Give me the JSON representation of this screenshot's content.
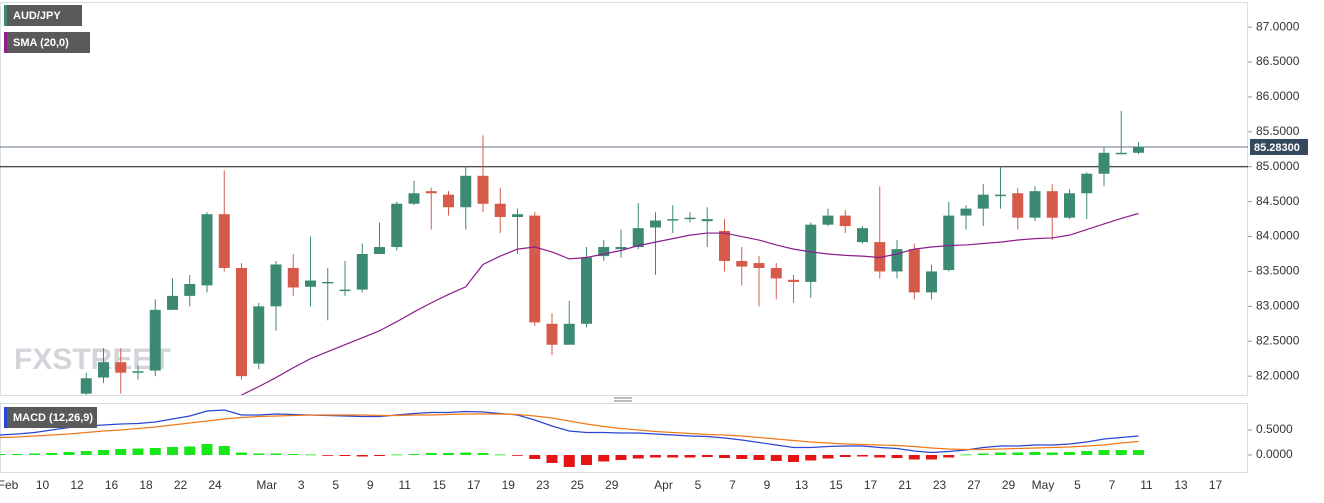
{
  "chart_data": [
    {
      "type": "candlestick",
      "title": "AUD/JPY",
      "watermark": "FXSTREET",
      "categories": [
        "Feb",
        null,
        "10",
        null,
        "12",
        null,
        "16",
        null,
        "18",
        null,
        "22",
        null,
        "24",
        null,
        null,
        "Mar",
        null,
        "3",
        null,
        "5",
        null,
        "9",
        null,
        "11",
        null,
        "15",
        null,
        "17",
        null,
        "19",
        null,
        "23",
        null,
        "25",
        null,
        "29",
        null,
        null,
        "Apr",
        null,
        "5",
        null,
        "7",
        null,
        "9",
        null,
        "13",
        null,
        "15",
        null,
        "17",
        null,
        "21",
        null,
        "23",
        null,
        "27",
        null,
        "29",
        null,
        "May",
        null,
        "5",
        null,
        "7",
        null,
        "11",
        null,
        "13",
        null,
        "17"
      ],
      "open": [
        null,
        null,
        null,
        null,
        null,
        81.75,
        81.98,
        82.2,
        82.05,
        82.08,
        82.95,
        83.15,
        83.3,
        84.32,
        83.55,
        82.18,
        83.0,
        83.55,
        83.28,
        83.35,
        83.22,
        83.24,
        83.75,
        83.85,
        84.47,
        84.65,
        84.6,
        84.42,
        84.87,
        84.47,
        84.28,
        84.3,
        82.75,
        82.45,
        82.75,
        83.72,
        83.82,
        83.85,
        84.13,
        84.24,
        84.25,
        84.22,
        84.08,
        83.65,
        83.62,
        83.55,
        83.38,
        83.35,
        84.17,
        84.3,
        83.92,
        83.92,
        83.5,
        83.82,
        83.2,
        83.52,
        84.3,
        84.4,
        84.6,
        84.62,
        84.27,
        84.65,
        84.27,
        84.62,
        84.9,
        85.2,
        85.2,
        null,
        null,
        null,
        null
      ],
      "high": [
        null,
        null,
        null,
        null,
        null,
        82.05,
        82.4,
        82.4,
        82.15,
        83.1,
        83.4,
        83.45,
        84.35,
        84.95,
        83.62,
        83.05,
        83.65,
        83.75,
        84.0,
        83.55,
        83.65,
        83.9,
        84.2,
        84.5,
        84.8,
        84.7,
        84.65,
        85.0,
        85.45,
        84.7,
        84.4,
        84.35,
        82.9,
        83.08,
        83.85,
        83.95,
        84.1,
        84.48,
        84.35,
        84.45,
        84.35,
        84.42,
        84.25,
        83.85,
        83.72,
        83.62,
        83.45,
        84.2,
        84.4,
        84.38,
        84.15,
        84.72,
        83.95,
        83.9,
        83.6,
        84.5,
        84.45,
        84.75,
        85.0,
        84.7,
        84.72,
        84.75,
        84.68,
        84.92,
        85.28,
        85.8,
        85.35,
        null,
        null,
        null,
        null
      ],
      "low": [
        null,
        null,
        null,
        null,
        null,
        81.7,
        81.9,
        81.75,
        81.95,
        82.0,
        82.95,
        83.0,
        83.2,
        83.5,
        81.95,
        82.1,
        82.65,
        83.15,
        83.0,
        82.8,
        83.15,
        83.2,
        83.75,
        83.8,
        84.45,
        84.1,
        84.3,
        84.1,
        84.35,
        84.05,
        83.75,
        82.72,
        82.3,
        82.45,
        82.7,
        83.65,
        83.7,
        83.82,
        83.45,
        84.05,
        84.2,
        83.85,
        83.5,
        83.3,
        83.0,
        83.1,
        83.05,
        83.12,
        84.15,
        84.05,
        83.9,
        83.4,
        83.4,
        83.1,
        83.1,
        83.5,
        84.1,
        84.15,
        84.4,
        84.1,
        84.22,
        83.95,
        84.25,
        84.25,
        84.72,
        85.18,
        85.18,
        null,
        null,
        null,
        null
      ],
      "close": [
        null,
        null,
        null,
        null,
        null,
        81.97,
        82.2,
        82.05,
        82.07,
        82.95,
        83.15,
        83.32,
        84.32,
        83.55,
        82.0,
        83.0,
        83.6,
        83.27,
        83.37,
        83.35,
        83.24,
        83.75,
        83.85,
        84.47,
        84.62,
        84.62,
        84.42,
        84.87,
        84.47,
        84.28,
        84.32,
        82.77,
        82.45,
        82.75,
        83.7,
        83.85,
        83.85,
        84.12,
        84.23,
        84.25,
        84.27,
        84.25,
        83.65,
        83.57,
        83.55,
        83.4,
        83.35,
        84.17,
        84.3,
        84.15,
        84.12,
        83.5,
        83.82,
        83.2,
        83.5,
        84.3,
        84.4,
        84.6,
        84.6,
        84.27,
        84.65,
        84.27,
        84.62,
        84.9,
        85.2,
        85.2,
        85.28,
        null,
        null,
        null,
        null
      ],
      "up_color": "#3d8a74",
      "down_color": "#d55a4a",
      "series": [
        {
          "name": "SMA (20,0)",
          "color": "#8e1d8e",
          "values": [
            null,
            null,
            null,
            null,
            null,
            null,
            null,
            null,
            null,
            null,
            null,
            null,
            null,
            null,
            81.73,
            81.85,
            81.98,
            82.12,
            82.25,
            82.35,
            82.45,
            82.55,
            82.65,
            82.78,
            82.92,
            83.05,
            83.17,
            83.28,
            83.6,
            83.72,
            83.82,
            83.85,
            83.78,
            83.68,
            83.7,
            83.75,
            83.8,
            83.87,
            83.92,
            83.97,
            84.02,
            84.05,
            84.05,
            84.0,
            83.95,
            83.88,
            83.82,
            83.78,
            83.75,
            83.73,
            83.72,
            83.7,
            83.75,
            83.82,
            83.85,
            83.87,
            83.88,
            83.9,
            83.92,
            83.95,
            83.97,
            83.98,
            84.02,
            84.1,
            84.18,
            84.26,
            84.33,
            null,
            null,
            null,
            null
          ]
        }
      ],
      "hline": 85,
      "last_price": {
        "value": 85.283,
        "label": "85.28300"
      },
      "ylim": [
        81.73,
        87.36
      ],
      "yticks": [
        {
          "value": 82,
          "label": "82.0000"
        },
        {
          "value": 82.5,
          "label": "82.5000"
        },
        {
          "value": 83,
          "label": "83.0000"
        },
        {
          "value": 83.5,
          "label": "83.5000"
        },
        {
          "value": 84,
          "label": "84.0000"
        },
        {
          "value": 84.5,
          "label": "84.5000"
        },
        {
          "value": 85,
          "label": "85.0000"
        },
        {
          "value": 85.5,
          "label": "85.5000"
        },
        {
          "value": 86,
          "label": "86.0000"
        },
        {
          "value": 86.5,
          "label": "86.5000"
        },
        {
          "value": 87,
          "label": "87.0000"
        }
      ]
    },
    {
      "type": "macd",
      "title": "MACD (12,26,9)",
      "series": [
        {
          "color": "#2a46d0",
          "values": [
            0.4,
            0.42,
            0.45,
            0.5,
            0.55,
            0.58,
            0.6,
            0.62,
            0.63,
            0.66,
            0.72,
            0.78,
            0.88,
            0.9,
            0.8,
            0.8,
            0.82,
            0.81,
            0.8,
            0.79,
            0.78,
            0.77,
            0.77,
            0.8,
            0.83,
            0.85,
            0.85,
            0.87,
            0.86,
            0.83,
            0.8,
            0.7,
            0.58,
            0.48,
            0.45,
            0.45,
            0.44,
            0.44,
            0.42,
            0.4,
            0.38,
            0.37,
            0.34,
            0.3,
            0.25,
            0.2,
            0.15,
            0.15,
            0.17,
            0.18,
            0.18,
            0.15,
            0.13,
            0.08,
            0.05,
            0.07,
            0.1,
            0.15,
            0.18,
            0.18,
            0.2,
            0.2,
            0.22,
            0.26,
            0.32,
            0.35,
            0.38,
            null,
            null,
            null,
            null
          ]
        },
        {
          "color": "#f07a1a",
          "values": [
            0.35,
            0.36,
            0.38,
            0.4,
            0.42,
            0.45,
            0.48,
            0.5,
            0.53,
            0.56,
            0.6,
            0.64,
            0.68,
            0.72,
            0.75,
            0.77,
            0.78,
            0.79,
            0.8,
            0.8,
            0.8,
            0.8,
            0.79,
            0.79,
            0.8,
            0.8,
            0.81,
            0.82,
            0.82,
            0.82,
            0.81,
            0.78,
            0.74,
            0.68,
            0.62,
            0.57,
            0.53,
            0.5,
            0.47,
            0.45,
            0.43,
            0.41,
            0.4,
            0.38,
            0.35,
            0.32,
            0.29,
            0.26,
            0.24,
            0.22,
            0.21,
            0.2,
            0.19,
            0.17,
            0.14,
            0.12,
            0.11,
            0.11,
            0.12,
            0.13,
            0.14,
            0.15,
            0.16,
            0.18,
            0.2,
            0.24,
            0.27,
            null,
            null,
            null,
            null
          ]
        }
      ],
      "histogram": {
        "up_color": "#19e619",
        "down_color": "#e61414",
        "values": [
          0.02,
          0.02,
          0.03,
          0.04,
          0.06,
          0.08,
          0.1,
          0.12,
          0.13,
          0.14,
          0.16,
          0.17,
          0.22,
          0.18,
          0.05,
          0.03,
          0.03,
          0.02,
          0.01,
          -0.01,
          -0.02,
          -0.03,
          -0.02,
          0.01,
          0.02,
          0.04,
          0.04,
          0.05,
          0.04,
          0.01,
          -0.01,
          -0.08,
          -0.16,
          -0.24,
          -0.2,
          -0.13,
          -0.1,
          -0.07,
          -0.05,
          -0.05,
          -0.05,
          -0.04,
          -0.06,
          -0.08,
          -0.1,
          -0.12,
          -0.14,
          -0.11,
          -0.07,
          -0.04,
          -0.03,
          -0.05,
          -0.06,
          -0.09,
          -0.09,
          -0.05,
          0.01,
          0.03,
          0.05,
          0.05,
          0.06,
          0.05,
          0.06,
          0.08,
          0.1,
          0.1,
          0.1,
          null,
          null,
          null,
          null
        ]
      },
      "ylim": [
        -0.34,
        1.04
      ],
      "yticks": [
        {
          "value": 0.5,
          "label": "0.5000"
        },
        {
          "value": 0,
          "label": "0.0000"
        }
      ]
    }
  ]
}
